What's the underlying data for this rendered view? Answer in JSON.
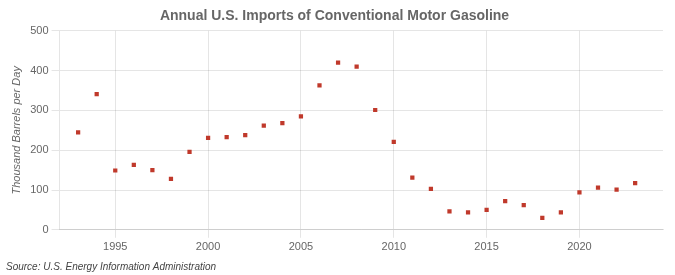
{
  "chart_data": {
    "type": "scatter",
    "title": "Annual U.S. Imports of Conventional Motor Gasoline",
    "ylabel": "Thousand Barrels per Day",
    "annotation": "Source: U.S. Energy Information Administration",
    "x": [
      1993,
      1994,
      1995,
      1996,
      1997,
      1998,
      1999,
      2000,
      2001,
      2002,
      2003,
      2004,
      2005,
      2006,
      2007,
      2008,
      2009,
      2010,
      2011,
      2012,
      2013,
      2014,
      2015,
      2016,
      2017,
      2018,
      2019,
      2020,
      2021,
      2022,
      2023
    ],
    "values": [
      245,
      341,
      149,
      163,
      150,
      128,
      196,
      231,
      233,
      238,
      262,
      268,
      285,
      363,
      420,
      410,
      301,
      221,
      131,
      103,
      46,
      44,
      50,
      72,
      62,
      30,
      44,
      94,
      106,
      101,
      117
    ],
    "color": "#c0392b",
    "marker": "square",
    "xlim": [
      1992.0,
      2024.5
    ],
    "xticks": [
      1995,
      2000,
      2005,
      2010,
      2015,
      2020
    ],
    "ylim": [
      0,
      500
    ],
    "yticks": [
      0,
      100,
      200,
      300,
      400,
      500
    ],
    "grid": true
  }
}
